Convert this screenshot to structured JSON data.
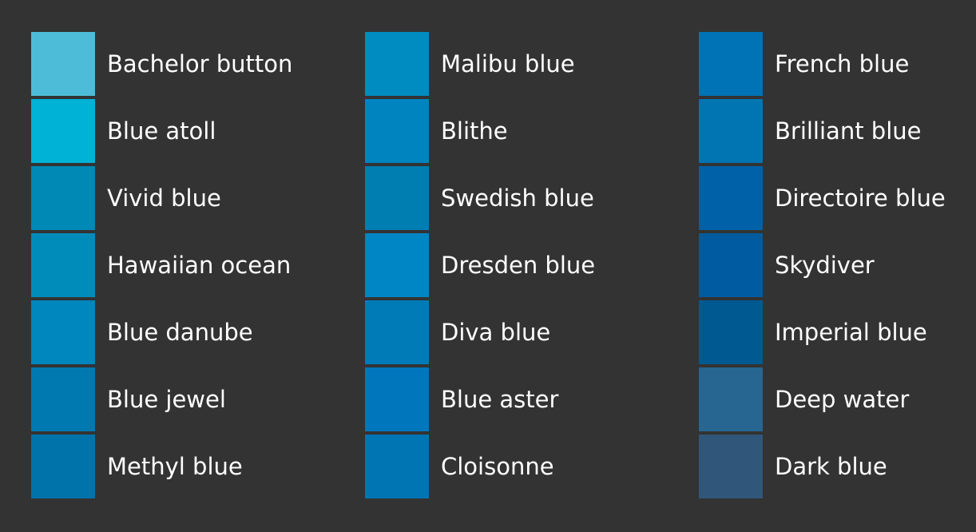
{
  "palette": {
    "columns": [
      {
        "swatches": [
          {
            "name": "Bachelor button",
            "color": "#4dbcd8"
          },
          {
            "name": "Blue atoll",
            "color": "#00b2d6"
          },
          {
            "name": "Vivid blue",
            "color": "#0089b4"
          },
          {
            "name": "Hawaiian ocean",
            "color": "#008cbb"
          },
          {
            "name": "Blue danube",
            "color": "#0087bd"
          },
          {
            "name": "Blue jewel",
            "color": "#0079b0"
          },
          {
            "name": "Methyl blue",
            "color": "#0073ab"
          }
        ]
      },
      {
        "swatches": [
          {
            "name": "Malibu blue",
            "color": "#008cc1"
          },
          {
            "name": "Blithe",
            "color": "#0084bf"
          },
          {
            "name": "Swedish blue",
            "color": "#007eb1"
          },
          {
            "name": "Dresden blue",
            "color": "#0086c4"
          },
          {
            "name": "Diva blue",
            "color": "#007bb7"
          },
          {
            "name": "Blue aster",
            "color": "#0076bc"
          },
          {
            "name": "Cloisonne",
            "color": "#0075b4"
          }
        ]
      },
      {
        "swatches": [
          {
            "name": "French blue",
            "color": "#0072b6"
          },
          {
            "name": "Brilliant blue",
            "color": "#0075b2"
          },
          {
            "name": "Directoire blue",
            "color": "#0061a8"
          },
          {
            "name": "Skydiver",
            "color": "#005ba0"
          },
          {
            "name": "Imperial blue",
            "color": "#005a91"
          },
          {
            "name": "Deep water",
            "color": "#266691"
          },
          {
            "name": "Dark blue",
            "color": "#305679"
          }
        ]
      }
    ]
  }
}
